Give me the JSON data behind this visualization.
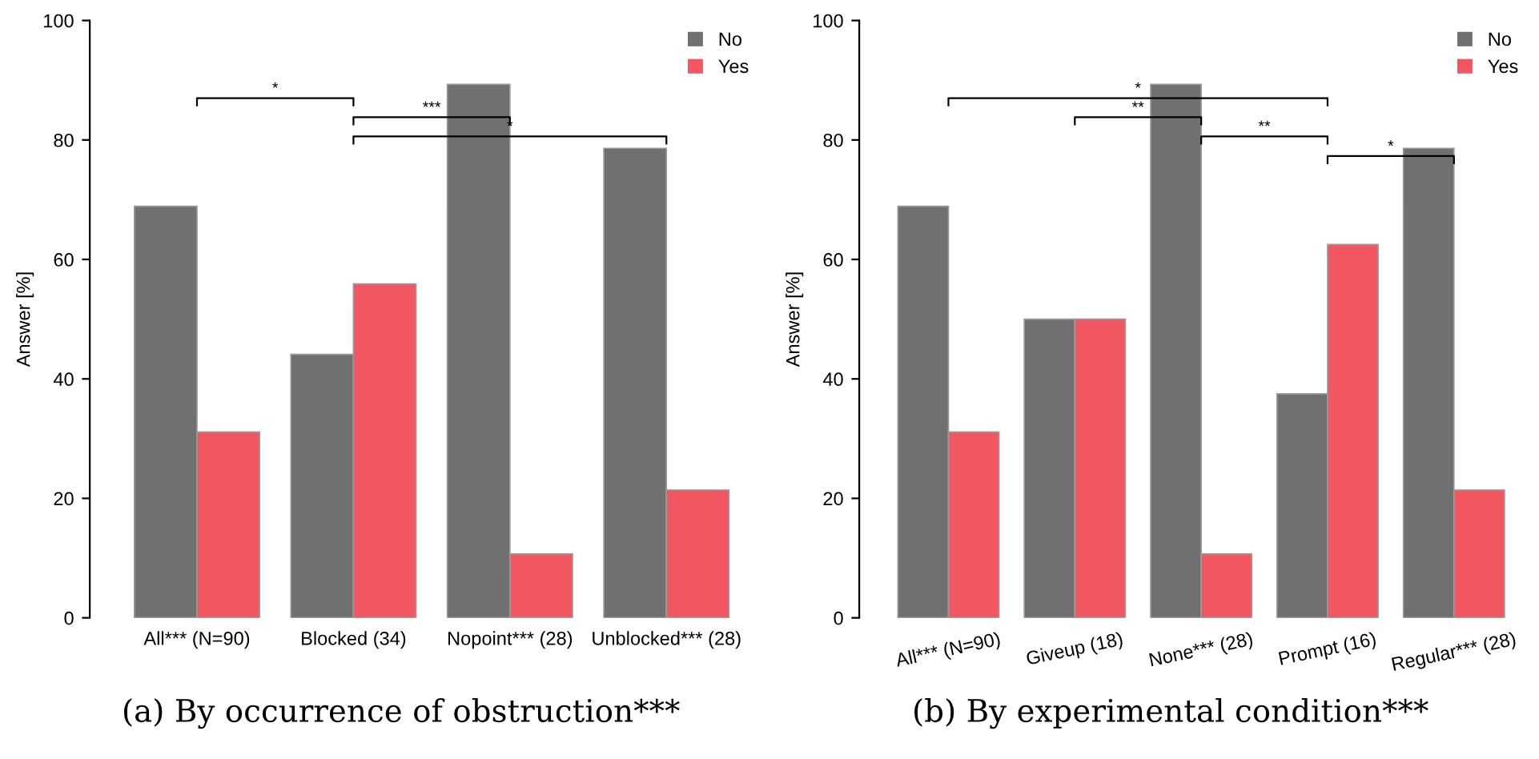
{
  "chart_data": [
    {
      "type": "bar",
      "title": "(a) By occurrence of obstruction***",
      "ylabel": "Answer [%]",
      "categories": [
        "All*** (N=90)",
        "Blocked (34)",
        "Nopoint*** (28)",
        "Unblocked*** (28)"
      ],
      "series": [
        {
          "name": "No",
          "color": "#707070",
          "values": [
            68.9,
            44.1,
            89.3,
            78.6
          ]
        },
        {
          "name": "Yes",
          "color": "#f15760",
          "values": [
            31.1,
            55.9,
            10.7,
            21.4
          ]
        }
      ],
      "ylim": [
        0,
        100
      ],
      "yticks": [
        0,
        20,
        40,
        60,
        80,
        100
      ],
      "grid": false,
      "legend": "top right",
      "annotations": [
        "*",
        "***",
        "*"
      ]
    },
    {
      "type": "bar",
      "title": "(b) By experimental condition***",
      "ylabel": "Answer [%]",
      "categories": [
        "All*** (N=90)",
        "Giveup (18)",
        "None*** (28)",
        "Prompt (16)",
        "Regular*** (28)"
      ],
      "series": [
        {
          "name": "No",
          "color": "#707070",
          "values": [
            68.9,
            50,
            89.3,
            37.5,
            78.6
          ]
        },
        {
          "name": "Yes",
          "color": "#f15760",
          "values": [
            31.1,
            50,
            10.7,
            62.5,
            21.4
          ]
        }
      ],
      "ylim": [
        0,
        100
      ],
      "yticks": [
        0,
        20,
        40,
        60,
        80,
        100
      ],
      "grid": false,
      "legend": "top right",
      "annotations": [
        "*",
        "**",
        "**",
        "*"
      ]
    }
  ]
}
